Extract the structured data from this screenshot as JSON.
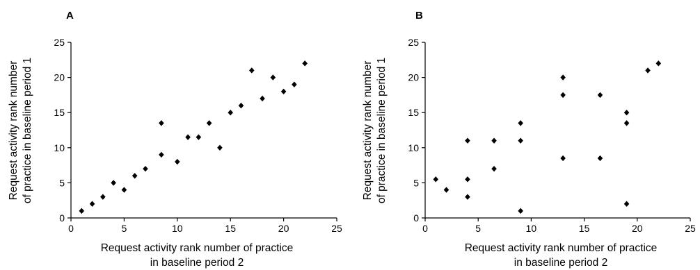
{
  "chart_data": [
    {
      "type": "scatter",
      "panel_label": "A",
      "xlabel_line1": "Request activity rank number of practice",
      "xlabel_line2": "in baseline period 2",
      "ylabel_line1": "Request activity rank number",
      "ylabel_line2": "of practice in baseline period 1",
      "xlim": [
        0,
        25
      ],
      "ylim": [
        0,
        25
      ],
      "xticks": [
        0,
        5,
        10,
        15,
        20,
        25
      ],
      "yticks": [
        0,
        5,
        10,
        15,
        20,
        25
      ],
      "marker": "diamond",
      "grid": false,
      "points": [
        [
          1,
          1
        ],
        [
          2,
          2
        ],
        [
          3,
          3
        ],
        [
          4,
          5
        ],
        [
          5,
          4
        ],
        [
          6,
          6
        ],
        [
          7,
          7
        ],
        [
          8.5,
          9
        ],
        [
          8.5,
          13.5
        ],
        [
          10,
          8
        ],
        [
          11,
          11.5
        ],
        [
          12,
          11.5
        ],
        [
          13,
          13.5
        ],
        [
          14,
          10
        ],
        [
          15,
          15
        ],
        [
          16,
          16
        ],
        [
          17,
          21
        ],
        [
          18,
          17
        ],
        [
          19,
          20
        ],
        [
          20,
          18
        ],
        [
          21,
          19
        ],
        [
          22,
          22
        ]
      ]
    },
    {
      "type": "scatter",
      "panel_label": "B",
      "xlabel_line1": "Request activity rank number of practice",
      "xlabel_line2": "in baseline period 2",
      "ylabel_line1": "Request activity rank number",
      "ylabel_line2": "of practice in baseline period 1",
      "xlim": [
        0,
        25
      ],
      "ylim": [
        0,
        25
      ],
      "xticks": [
        0,
        5,
        10,
        15,
        20,
        25
      ],
      "yticks": [
        0,
        5,
        10,
        15,
        20,
        25
      ],
      "marker": "diamond",
      "grid": false,
      "points": [
        [
          1,
          5.5
        ],
        [
          2,
          4
        ],
        [
          4,
          3
        ],
        [
          4,
          5.5
        ],
        [
          4,
          11
        ],
        [
          6.5,
          7
        ],
        [
          6.5,
          11
        ],
        [
          9,
          1
        ],
        [
          9,
          11
        ],
        [
          9,
          13.5
        ],
        [
          13,
          8.5
        ],
        [
          13,
          17.5
        ],
        [
          13,
          20
        ],
        [
          16.5,
          8.5
        ],
        [
          16.5,
          17.5
        ],
        [
          19,
          2
        ],
        [
          19,
          13.5
        ],
        [
          19,
          15
        ],
        [
          21,
          21
        ],
        [
          22,
          22
        ]
      ]
    }
  ]
}
